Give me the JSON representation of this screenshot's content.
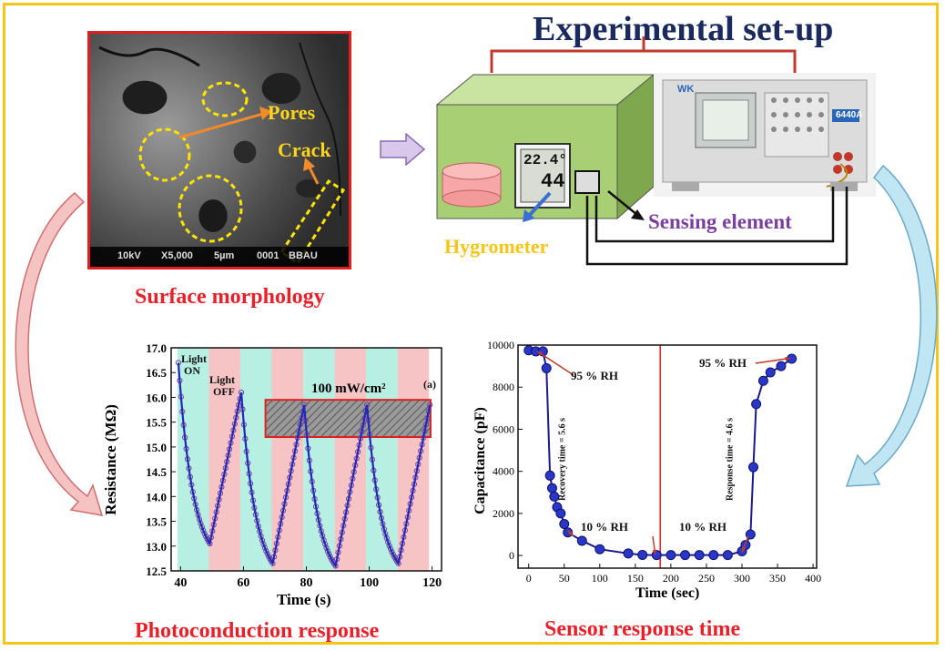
{
  "title": "Experimental set-up",
  "captions": {
    "surface_morphology": "Surface morphology",
    "photoconduction": "Photoconduction response",
    "sensor_response": "Sensor response time"
  },
  "sem": {
    "pores_label": "Pores",
    "crack_label": "Crack",
    "info_kv": "10kV",
    "info_mag": "X5,000",
    "info_scale": "5µm",
    "info_id": "0001",
    "info_lab": "BBAU"
  },
  "setup": {
    "hygrometer_label": "Hygrometer",
    "sensing_label": "Sensing element",
    "hygrometer_temp": "22.4°",
    "hygrometer_rh": "44",
    "meter_model": "6440A",
    "meter_brand": "WK"
  },
  "colors": {
    "title": "#1b2a5e",
    "caption": "#e8202a",
    "frame": "#f5c518",
    "sem_border": "#e02020",
    "yellow": "#ffd51a",
    "purple": "#7b3fa0",
    "chamber": "#a9cf75",
    "light_on": "#b7f0e2",
    "light_off": "#f7c4c6",
    "curve": "#1f2bb8",
    "marker": "#2a36c8"
  },
  "chart_data": [
    {
      "type": "line",
      "xlabel": "Time (s)",
      "ylabel": "Resistance (MΩ)",
      "xlim": [
        37,
        123
      ],
      "ylim": [
        12.5,
        17.0
      ],
      "xticks": [
        40,
        60,
        80,
        100,
        120
      ],
      "yticks": [
        12.5,
        13.0,
        13.5,
        14.0,
        14.5,
        15.0,
        15.5,
        16.0,
        16.5,
        17.0
      ],
      "annotations": {
        "light_on": [
          "Light",
          "ON"
        ],
        "light_off": [
          "Light",
          "OFF"
        ],
        "intensity": "100 mW/cm²",
        "panel": "(a)"
      },
      "bands": [
        {
          "state": "on",
          "from": 39,
          "to": 49
        },
        {
          "state": "off",
          "from": 49,
          "to": 59
        },
        {
          "state": "on",
          "from": 59,
          "to": 69
        },
        {
          "state": "off",
          "from": 69,
          "to": 79
        },
        {
          "state": "on",
          "from": 79,
          "to": 89
        },
        {
          "state": "off",
          "from": 89,
          "to": 99
        },
        {
          "state": "on",
          "from": 99,
          "to": 109
        },
        {
          "state": "off",
          "from": 109,
          "to": 119
        }
      ],
      "x": [
        39.3,
        49.3,
        59.3,
        69.3,
        79.3,
        89.3,
        99.3,
        109.3,
        119.3
      ],
      "y": [
        16.7,
        13.05,
        16.1,
        12.65,
        15.85,
        12.6,
        15.85,
        12.65,
        15.85
      ]
    },
    {
      "type": "line",
      "xlabel": "Time (sec)",
      "ylabel": "Capacitance (pF)",
      "xlim": [
        -15,
        405
      ],
      "ylim": [
        -600,
        10000
      ],
      "xticks": [
        0,
        50,
        100,
        150,
        200,
        250,
        300,
        350,
        400
      ],
      "yticks": [
        0,
        2000,
        4000,
        6000,
        8000,
        10000
      ],
      "annotations": {
        "rh_high_left": "95 % RH",
        "rh_high_right": "95 % RH",
        "rh_low_left": "10 % RH",
        "rh_low_right": "10 % RH",
        "recovery": "Recovery time = 5.6 s",
        "response": "Response time = 4.6 s"
      },
      "divider_x": 185,
      "x": [
        0,
        10,
        20,
        25,
        30,
        33,
        36,
        40,
        45,
        50,
        55,
        75,
        100,
        140,
        160,
        180,
        200,
        220,
        240,
        260,
        280,
        300,
        305,
        312,
        316,
        320,
        330,
        340,
        355,
        370
      ],
      "y": [
        9750,
        9700,
        9700,
        8900,
        3800,
        3200,
        2800,
        2300,
        2000,
        1500,
        1100,
        700,
        300,
        100,
        30,
        20,
        20,
        20,
        20,
        20,
        20,
        200,
        500,
        1000,
        4200,
        7200,
        8300,
        8700,
        9000,
        9350
      ]
    }
  ]
}
